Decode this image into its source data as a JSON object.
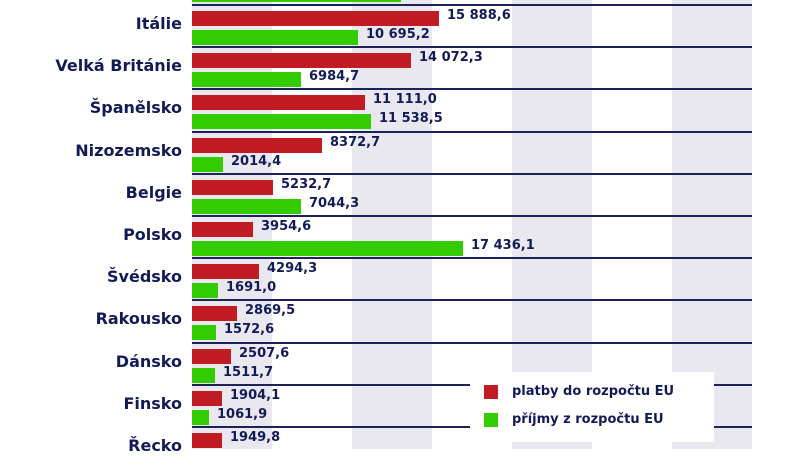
{
  "chart_data": {
    "type": "bar",
    "orientation": "horizontal",
    "title": "",
    "xlabel": "",
    "ylabel": "",
    "grid": "alternating vertical bands",
    "legend_position": "bottom-right inside",
    "categories": [
      "Itálie",
      "Velká Británie",
      "Španělsko",
      "Nizozemsko",
      "Belgie",
      "Polsko",
      "Švédsko",
      "Rakousko",
      "Dánsko",
      "Finsko",
      "Řecko"
    ],
    "series": [
      {
        "name": "platby do rozpočtu EU",
        "color": "#c11b24",
        "values": [
          15888.6,
          14072.3,
          11111.0,
          8372.7,
          5232.7,
          3954.6,
          4294.3,
          2869.5,
          2507.6,
          1904.1,
          1949.8
        ],
        "labels": [
          "15 888,6",
          "14 072,3",
          "11 111,0",
          "8372,7",
          "5232,7",
          "3954,6",
          "4294,3",
          "2869,5",
          "2507,6",
          "1904,1",
          "1949,8"
        ]
      },
      {
        "name": "příjmy z rozpočtu EU",
        "color": "#33cc00",
        "values": [
          10695.2,
          6984.7,
          11538.5,
          2014.4,
          7044.3,
          17436.1,
          1691.0,
          1572.6,
          1511.7,
          1061.9,
          null
        ],
        "labels": [
          "10 695,2",
          "6984,7",
          "11 538,5",
          "2014,4",
          "7044,3",
          "17 436,1",
          "1691,0",
          "1572,6",
          "1511,7",
          "1061,9",
          ""
        ]
      }
    ],
    "xlim": [
      0,
      36000
    ]
  },
  "legend": {
    "items": [
      {
        "label": "platby do rozpočtu EU",
        "color": "#c11b24"
      },
      {
        "label": "příjmy z rozpočtu EU",
        "color": "#33cc00"
      }
    ]
  }
}
